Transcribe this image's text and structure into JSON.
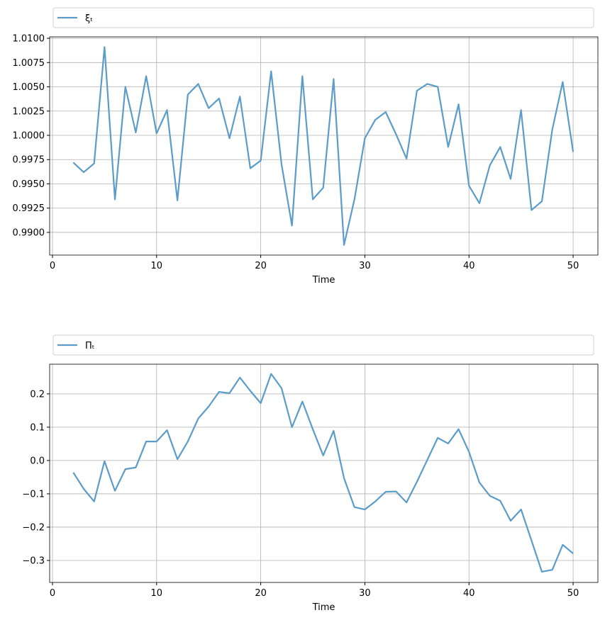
{
  "chart_data": [
    {
      "type": "line",
      "xlabel": "Time",
      "x": [
        2,
        3,
        4,
        5,
        6,
        7,
        8,
        9,
        10,
        11,
        12,
        13,
        14,
        15,
        16,
        17,
        18,
        19,
        20,
        21,
        22,
        23,
        24,
        25,
        26,
        27,
        28,
        29,
        30,
        31,
        32,
        33,
        34,
        35,
        36,
        37,
        38,
        39,
        40,
        41,
        42,
        43,
        44,
        45,
        46,
        47,
        48,
        49,
        50
      ],
      "series": [
        {
          "name": "ξₜ",
          "color": "#5b9cc8",
          "values": [
            0.9972,
            0.9962,
            0.9971,
            1.0091,
            0.9934,
            1.005,
            1.0003,
            1.0061,
            1.0002,
            1.0026,
            0.9933,
            1.0042,
            1.0053,
            1.0028,
            1.0038,
            0.9997,
            1.004,
            0.9966,
            0.9974,
            1.0066,
            0.997,
            0.9907,
            1.0061,
            0.9934,
            0.9946,
            1.0058,
            0.9887,
            0.9934,
            0.9997,
            1.0016,
            1.0024,
            1.0001,
            0.9976,
            1.0046,
            1.0053,
            1.005,
            0.9988,
            1.0032,
            0.9948,
            0.993,
            0.9969,
            0.9988,
            0.9955,
            1.0026,
            0.9923,
            0.9932,
            1.0006,
            1.0055,
            0.9983
          ]
        }
      ],
      "xlim": [
        -0.27,
        52.38
      ],
      "xticks": [
        0,
        10,
        20,
        30,
        40,
        50
      ],
      "ylim": [
        0.98766,
        1.01015
      ],
      "yticks": [
        {
          "value": 0.99,
          "label": "0.9900"
        },
        {
          "value": 0.9925,
          "label": "0.9925"
        },
        {
          "value": 0.995,
          "label": "0.9950"
        },
        {
          "value": 0.9975,
          "label": "0.9975"
        },
        {
          "value": 1.0,
          "label": "1.0000"
        },
        {
          "value": 1.0025,
          "label": "1.0025"
        },
        {
          "value": 1.005,
          "label": "1.0050"
        },
        {
          "value": 1.0075,
          "label": "1.0075"
        },
        {
          "value": 1.01,
          "label": "1.0100"
        }
      ],
      "grid": true
    },
    {
      "type": "line",
      "xlabel": "Time",
      "x": [
        2,
        3,
        4,
        5,
        6,
        7,
        8,
        9,
        10,
        11,
        12,
        13,
        14,
        15,
        16,
        17,
        18,
        19,
        20,
        21,
        22,
        23,
        24,
        25,
        26,
        27,
        28,
        29,
        30,
        31,
        32,
        33,
        34,
        35,
        36,
        37,
        38,
        39,
        40,
        41,
        42,
        43,
        44,
        45,
        46,
        47,
        48,
        49,
        50
      ],
      "series": [
        {
          "name": "Πₜ",
          "color": "#5b9cc8",
          "values": [
            -0.036,
            -0.085,
            -0.123,
            -0.002,
            -0.091,
            -0.026,
            -0.021,
            0.057,
            0.057,
            0.091,
            0.004,
            0.057,
            0.126,
            0.162,
            0.206,
            0.202,
            0.249,
            0.209,
            0.172,
            0.26,
            0.217,
            0.1,
            0.177,
            0.094,
            0.015,
            0.089,
            -0.053,
            -0.14,
            -0.147,
            -0.123,
            -0.094,
            -0.093,
            -0.126,
            -0.064,
            0.002,
            0.068,
            0.051,
            0.094,
            0.026,
            -0.066,
            -0.106,
            -0.121,
            -0.181,
            -0.147,
            -0.24,
            -0.334,
            -0.328,
            -0.253,
            -0.279
          ]
        }
      ],
      "xlim": [
        -0.27,
        52.38
      ],
      "xticks": [
        0,
        10,
        20,
        30,
        40,
        50
      ],
      "ylim": [
        -0.366,
        0.289
      ],
      "yticks": [
        {
          "value": -0.3,
          "label": "−0.3"
        },
        {
          "value": -0.2,
          "label": "−0.2"
        },
        {
          "value": -0.1,
          "label": "−0.1"
        },
        {
          "value": 0,
          "label": "0.0"
        },
        {
          "value": 0.1,
          "label": "0.1"
        },
        {
          "value": 0.2,
          "label": "0.2"
        }
      ],
      "grid": true
    }
  ]
}
